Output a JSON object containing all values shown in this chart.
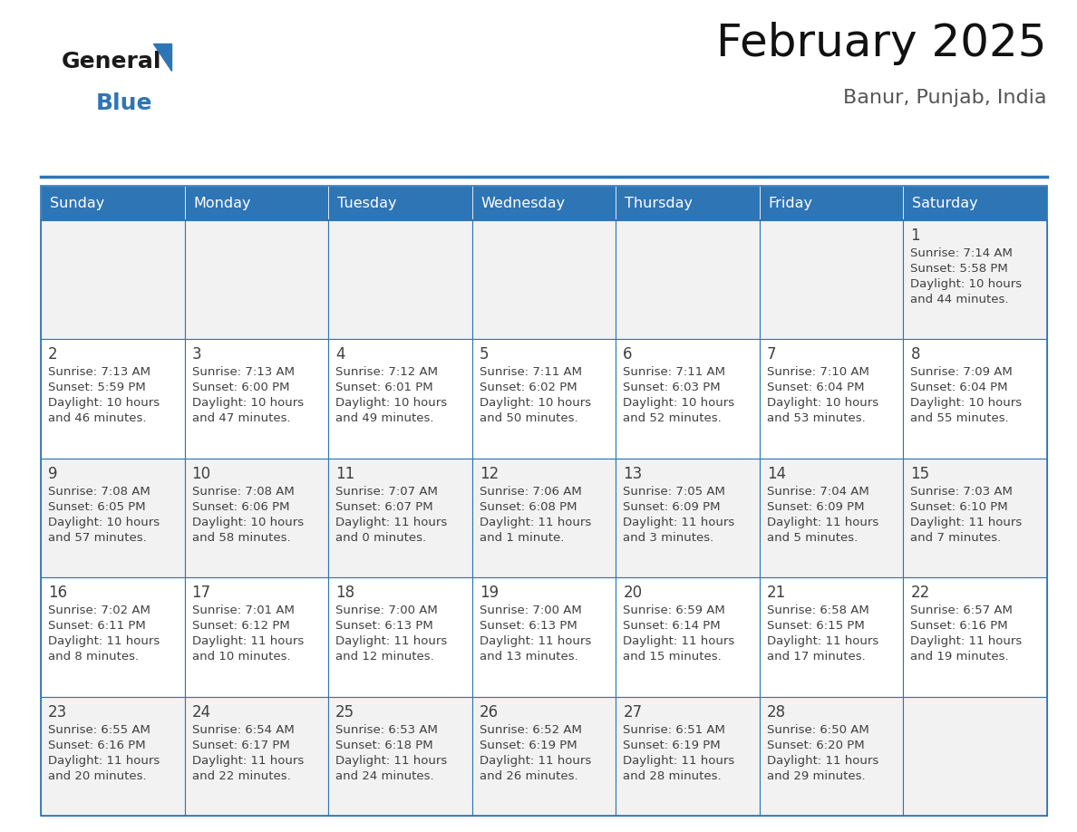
{
  "title": "February 2025",
  "subtitle": "Banur, Punjab, India",
  "header_bg": "#2E75B6",
  "header_text": "#FFFFFF",
  "cell_bg": "#F2F2F2",
  "border_color": "#2E75B6",
  "text_color": "#404040",
  "days_of_week": [
    "Sunday",
    "Monday",
    "Tuesday",
    "Wednesday",
    "Thursday",
    "Friday",
    "Saturday"
  ],
  "weeks": [
    [
      null,
      null,
      null,
      null,
      null,
      null,
      {
        "day": "1",
        "sunrise": "7:14 AM",
        "sunset": "5:58 PM",
        "daylight": "10 hours",
        "daylight2": "and 44 minutes."
      }
    ],
    [
      {
        "day": "2",
        "sunrise": "7:13 AM",
        "sunset": "5:59 PM",
        "daylight": "10 hours",
        "daylight2": "and 46 minutes."
      },
      {
        "day": "3",
        "sunrise": "7:13 AM",
        "sunset": "6:00 PM",
        "daylight": "10 hours",
        "daylight2": "and 47 minutes."
      },
      {
        "day": "4",
        "sunrise": "7:12 AM",
        "sunset": "6:01 PM",
        "daylight": "10 hours",
        "daylight2": "and 49 minutes."
      },
      {
        "day": "5",
        "sunrise": "7:11 AM",
        "sunset": "6:02 PM",
        "daylight": "10 hours",
        "daylight2": "and 50 minutes."
      },
      {
        "day": "6",
        "sunrise": "7:11 AM",
        "sunset": "6:03 PM",
        "daylight": "10 hours",
        "daylight2": "and 52 minutes."
      },
      {
        "day": "7",
        "sunrise": "7:10 AM",
        "sunset": "6:04 PM",
        "daylight": "10 hours",
        "daylight2": "and 53 minutes."
      },
      {
        "day": "8",
        "sunrise": "7:09 AM",
        "sunset": "6:04 PM",
        "daylight": "10 hours",
        "daylight2": "and 55 minutes."
      }
    ],
    [
      {
        "day": "9",
        "sunrise": "7:08 AM",
        "sunset": "6:05 PM",
        "daylight": "10 hours",
        "daylight2": "and 57 minutes."
      },
      {
        "day": "10",
        "sunrise": "7:08 AM",
        "sunset": "6:06 PM",
        "daylight": "10 hours",
        "daylight2": "and 58 minutes."
      },
      {
        "day": "11",
        "sunrise": "7:07 AM",
        "sunset": "6:07 PM",
        "daylight": "11 hours",
        "daylight2": "and 0 minutes."
      },
      {
        "day": "12",
        "sunrise": "7:06 AM",
        "sunset": "6:08 PM",
        "daylight": "11 hours",
        "daylight2": "and 1 minute."
      },
      {
        "day": "13",
        "sunrise": "7:05 AM",
        "sunset": "6:09 PM",
        "daylight": "11 hours",
        "daylight2": "and 3 minutes."
      },
      {
        "day": "14",
        "sunrise": "7:04 AM",
        "sunset": "6:09 PM",
        "daylight": "11 hours",
        "daylight2": "and 5 minutes."
      },
      {
        "day": "15",
        "sunrise": "7:03 AM",
        "sunset": "6:10 PM",
        "daylight": "11 hours",
        "daylight2": "and 7 minutes."
      }
    ],
    [
      {
        "day": "16",
        "sunrise": "7:02 AM",
        "sunset": "6:11 PM",
        "daylight": "11 hours",
        "daylight2": "and 8 minutes."
      },
      {
        "day": "17",
        "sunrise": "7:01 AM",
        "sunset": "6:12 PM",
        "daylight": "11 hours",
        "daylight2": "and 10 minutes."
      },
      {
        "day": "18",
        "sunrise": "7:00 AM",
        "sunset": "6:13 PM",
        "daylight": "11 hours",
        "daylight2": "and 12 minutes."
      },
      {
        "day": "19",
        "sunrise": "7:00 AM",
        "sunset": "6:13 PM",
        "daylight": "11 hours",
        "daylight2": "and 13 minutes."
      },
      {
        "day": "20",
        "sunrise": "6:59 AM",
        "sunset": "6:14 PM",
        "daylight": "11 hours",
        "daylight2": "and 15 minutes."
      },
      {
        "day": "21",
        "sunrise": "6:58 AM",
        "sunset": "6:15 PM",
        "daylight": "11 hours",
        "daylight2": "and 17 minutes."
      },
      {
        "day": "22",
        "sunrise": "6:57 AM",
        "sunset": "6:16 PM",
        "daylight": "11 hours",
        "daylight2": "and 19 minutes."
      }
    ],
    [
      {
        "day": "23",
        "sunrise": "6:55 AM",
        "sunset": "6:16 PM",
        "daylight": "11 hours",
        "daylight2": "and 20 minutes."
      },
      {
        "day": "24",
        "sunrise": "6:54 AM",
        "sunset": "6:17 PM",
        "daylight": "11 hours",
        "daylight2": "and 22 minutes."
      },
      {
        "day": "25",
        "sunrise": "6:53 AM",
        "sunset": "6:18 PM",
        "daylight": "11 hours",
        "daylight2": "and 24 minutes."
      },
      {
        "day": "26",
        "sunrise": "6:52 AM",
        "sunset": "6:19 PM",
        "daylight": "11 hours",
        "daylight2": "and 26 minutes."
      },
      {
        "day": "27",
        "sunrise": "6:51 AM",
        "sunset": "6:19 PM",
        "daylight": "11 hours",
        "daylight2": "and 28 minutes."
      },
      {
        "day": "28",
        "sunrise": "6:50 AM",
        "sunset": "6:20 PM",
        "daylight": "11 hours",
        "daylight2": "and 29 minutes."
      },
      null
    ]
  ],
  "logo_general_color": "#1A1A1A",
  "logo_blue_color": "#2E75B6",
  "logo_triangle_color": "#2E75B6"
}
